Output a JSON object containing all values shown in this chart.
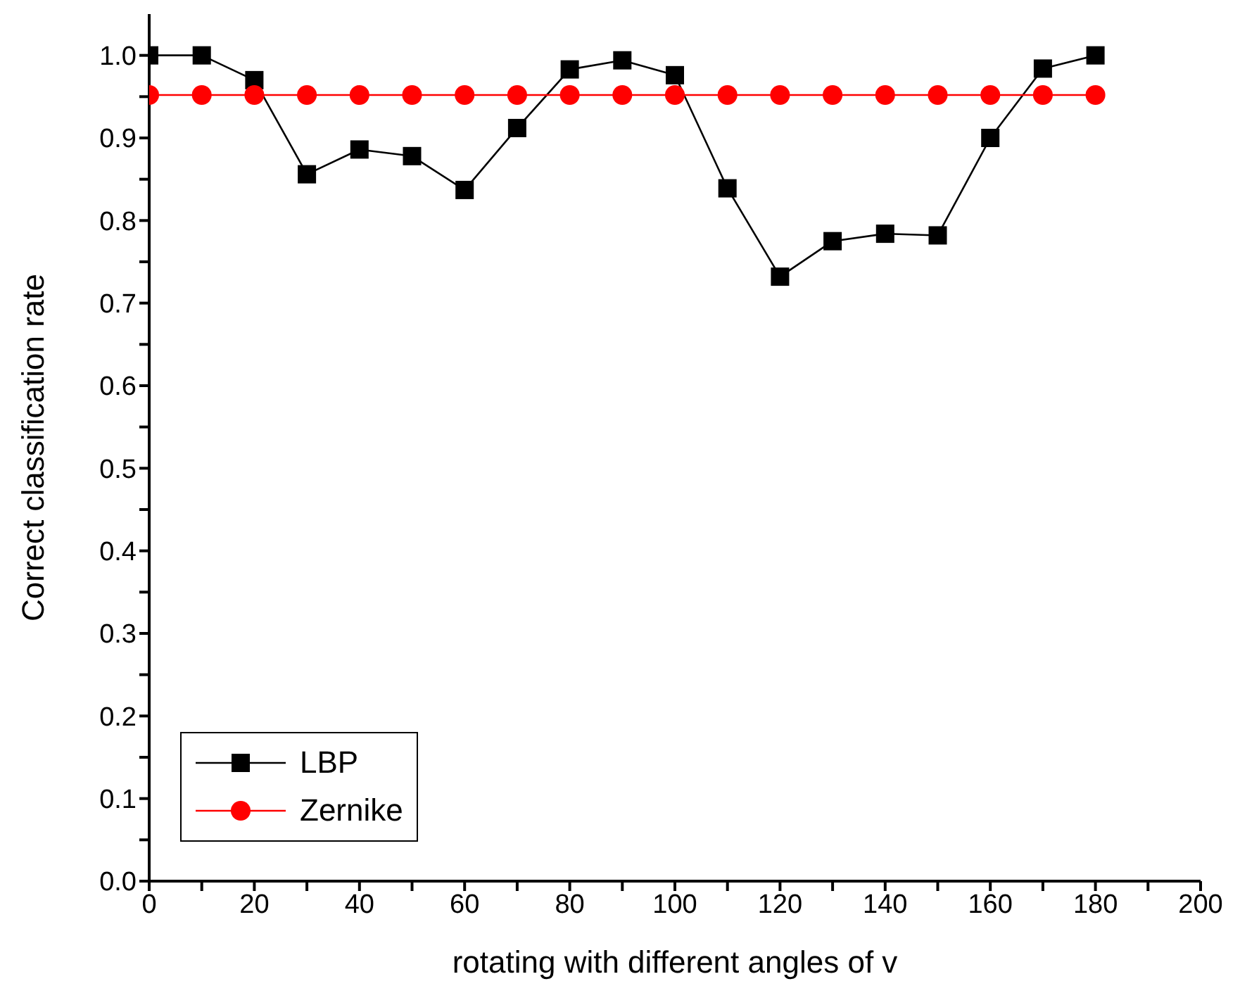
{
  "chart_data": {
    "type": "line",
    "xlabel": "rotating with different angles of v",
    "ylabel": "Correct classification rate",
    "x": [
      0,
      10,
      20,
      30,
      40,
      50,
      60,
      70,
      80,
      90,
      100,
      110,
      120,
      130,
      140,
      150,
      160,
      170,
      180
    ],
    "series": [
      {
        "name": "LBP",
        "color": "#000000",
        "marker": "square",
        "values": [
          1.0,
          1.0,
          0.97,
          0.856,
          0.886,
          0.878,
          0.837,
          0.912,
          0.983,
          0.994,
          0.976,
          0.839,
          0.732,
          0.775,
          0.784,
          0.782,
          0.9,
          0.984,
          1.0
        ]
      },
      {
        "name": "Zernike",
        "color": "#ff0000",
        "marker": "circle",
        "values": [
          0.952,
          0.952,
          0.952,
          0.952,
          0.952,
          0.952,
          0.952,
          0.952,
          0.952,
          0.952,
          0.952,
          0.952,
          0.952,
          0.952,
          0.952,
          0.952,
          0.952,
          0.952,
          0.952
        ]
      }
    ],
    "xlim": [
      0,
      200
    ],
    "xticks": [
      0,
      {
        "value": 10,
        "label": null
      },
      20,
      {
        "value": 30,
        "label": null
      },
      40,
      {
        "value": 50,
        "label": null
      },
      60,
      {
        "value": 70,
        "label": null
      },
      80,
      {
        "value": 90,
        "label": null
      },
      100,
      {
        "value": 110,
        "label": null
      },
      120,
      {
        "value": 130,
        "label": null
      },
      140,
      {
        "value": 150,
        "label": null
      },
      160,
      {
        "value": 170,
        "label": null
      },
      180,
      {
        "value": 190,
        "label": null
      },
      200
    ],
    "ylim": [
      0,
      1.05
    ],
    "yticks": [
      {
        "value": 0,
        "label": "0.0"
      },
      {
        "value": 0.05,
        "label": null
      },
      0.1,
      {
        "value": 0.15,
        "label": null
      },
      0.2,
      {
        "value": 0.25,
        "label": null
      },
      0.3,
      {
        "value": 0.35,
        "label": null
      },
      0.4,
      {
        "value": 0.45,
        "label": null
      },
      0.5,
      {
        "value": 0.55,
        "label": null
      },
      0.6,
      {
        "value": 0.65,
        "label": null
      },
      0.7,
      {
        "value": 0.75,
        "label": null
      },
      0.8,
      {
        "value": 0.85,
        "label": null
      },
      0.9,
      {
        "value": 0.95,
        "label": null
      },
      {
        "value": 1,
        "label": "1.0"
      }
    ],
    "legend": "bottom left",
    "grid": false
  }
}
